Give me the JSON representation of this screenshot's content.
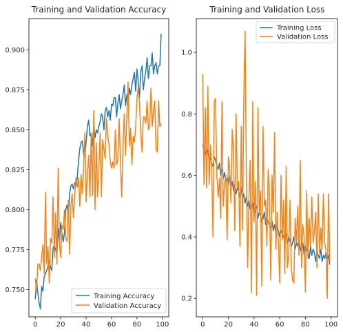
{
  "chart_data": [
    {
      "type": "line",
      "title": "Training and Validation Accuracy",
      "xlabel": "",
      "ylabel": "",
      "xlim": [
        -5,
        105
      ],
      "ylim": [
        0.733,
        0.9195
      ],
      "xticks": [
        0,
        20,
        40,
        60,
        80,
        100
      ],
      "xtick_labels": [
        "0",
        "20",
        "40",
        "60",
        "80",
        "100"
      ],
      "yticks": [
        0.75,
        0.775,
        0.8,
        0.825,
        0.85,
        0.875,
        0.9
      ],
      "ytick_labels": [
        "0.750",
        "0.775",
        "0.800",
        "0.825",
        "0.850",
        "0.875",
        "0.900"
      ],
      "legend_position": "lower-right",
      "grid": false,
      "series": [
        {
          "name": "Training Accuracy",
          "color": "#1f77b4",
          "x": [
            0,
            1,
            2,
            3,
            4,
            5,
            6,
            7,
            8,
            9,
            10,
            11,
            12,
            13,
            14,
            15,
            16,
            17,
            18,
            19,
            20,
            21,
            22,
            23,
            24,
            25,
            26,
            27,
            28,
            29,
            30,
            31,
            32,
            33,
            34,
            35,
            36,
            37,
            38,
            39,
            40,
            41,
            42,
            43,
            44,
            45,
            46,
            47,
            48,
            49,
            50,
            51,
            52,
            53,
            54,
            55,
            56,
            57,
            58,
            59,
            60,
            61,
            62,
            63,
            64,
            65,
            66,
            67,
            68,
            69,
            70,
            71,
            72,
            73,
            74,
            75,
            76,
            77,
            78,
            79,
            80,
            81,
            82,
            83,
            84,
            85,
            86,
            87,
            88,
            89,
            90,
            91,
            92,
            93,
            94,
            95,
            96,
            97,
            98,
            99
          ],
          "values": [
            0.744,
            0.756,
            0.748,
            0.742,
            0.738,
            0.752,
            0.749,
            0.758,
            0.76,
            0.762,
            0.765,
            0.768,
            0.764,
            0.762,
            0.776,
            0.778,
            0.775,
            0.772,
            0.788,
            0.78,
            0.792,
            0.785,
            0.78,
            0.786,
            0.8,
            0.803,
            0.795,
            0.81,
            0.815,
            0.816,
            0.813,
            0.817,
            0.815,
            0.82,
            0.83,
            0.838,
            0.842,
            0.843,
            0.835,
            0.833,
            0.842,
            0.852,
            0.856,
            0.846,
            0.848,
            0.84,
            0.853,
            0.845,
            0.85,
            0.848,
            0.852,
            0.855,
            0.86,
            0.858,
            0.85,
            0.862,
            0.864,
            0.858,
            0.862,
            0.856,
            0.866,
            0.865,
            0.87,
            0.87,
            0.858,
            0.867,
            0.872,
            0.863,
            0.868,
            0.872,
            0.878,
            0.865,
            0.872,
            0.866,
            0.876,
            0.872,
            0.878,
            0.882,
            0.886,
            0.874,
            0.888,
            0.88,
            0.87,
            0.886,
            0.89,
            0.875,
            0.882,
            0.887,
            0.895,
            0.882,
            0.89,
            0.89,
            0.898,
            0.885,
            0.89,
            0.892,
            0.885,
            0.89,
            0.89,
            0.91
          ]
        },
        {
          "name": "Validation Accuracy",
          "color": "#ff7f0e",
          "x": [
            0,
            1,
            2,
            3,
            4,
            5,
            6,
            7,
            8,
            9,
            10,
            11,
            12,
            13,
            14,
            15,
            16,
            17,
            18,
            19,
            20,
            21,
            22,
            23,
            24,
            25,
            26,
            27,
            28,
            29,
            30,
            31,
            32,
            33,
            34,
            35,
            36,
            37,
            38,
            39,
            40,
            41,
            42,
            43,
            44,
            45,
            46,
            47,
            48,
            49,
            50,
            51,
            52,
            53,
            54,
            55,
            56,
            57,
            58,
            59,
            60,
            61,
            62,
            63,
            64,
            65,
            66,
            67,
            68,
            69,
            70,
            71,
            72,
            73,
            74,
            75,
            76,
            77,
            78,
            79,
            80,
            81,
            82,
            83,
            84,
            85,
            86,
            87,
            88,
            89,
            90,
            91,
            92,
            93,
            94,
            95,
            96,
            97,
            98,
            99
          ],
          "values": [
            0.757,
            0.749,
            0.766,
            0.766,
            0.762,
            0.77,
            0.778,
            0.76,
            0.811,
            0.766,
            0.777,
            0.754,
            0.782,
            0.779,
            0.808,
            0.77,
            0.798,
            0.766,
            0.826,
            0.778,
            0.77,
            0.79,
            0.788,
            0.8,
            0.782,
            0.78,
            0.806,
            0.772,
            0.803,
            0.81,
            0.795,
            0.808,
            0.82,
            0.814,
            0.82,
            0.802,
            0.822,
            0.81,
            0.826,
            0.848,
            0.805,
            0.822,
            0.834,
            0.808,
            0.848,
            0.809,
            0.862,
            0.8,
            0.842,
            0.808,
            0.825,
            0.848,
            0.808,
            0.844,
            0.838,
            0.832,
            0.857,
            0.846,
            0.841,
            0.83,
            0.826,
            0.83,
            0.826,
            0.85,
            0.828,
            0.832,
            0.857,
            0.83,
            0.808,
            0.84,
            0.86,
            0.834,
            0.857,
            0.88,
            0.84,
            0.851,
            0.828,
            0.846,
            0.842,
            0.852,
            0.87,
            0.876,
            0.866,
            0.848,
            0.836,
            0.858,
            0.858,
            0.854,
            0.868,
            0.85,
            0.852,
            0.876,
            0.852,
            0.862,
            0.868,
            0.838,
            0.836,
            0.868,
            0.852,
            0.854
          ]
        }
      ]
    },
    {
      "type": "line",
      "title": "Training and Validation Loss",
      "xlabel": "",
      "ylabel": "",
      "xlim": [
        -5,
        105
      ],
      "ylim": [
        0.14,
        1.11
      ],
      "xticks": [
        0,
        20,
        40,
        60,
        80,
        100
      ],
      "xtick_labels": [
        "0",
        "20",
        "40",
        "60",
        "80",
        "100"
      ],
      "yticks": [
        0.2,
        0.4,
        0.6,
        0.8,
        1.0
      ],
      "ytick_labels": [
        "0.2",
        "0.4",
        "0.6",
        "0.8",
        "1.0"
      ],
      "legend_position": "upper-right",
      "grid": false,
      "series": [
        {
          "name": "Training Loss",
          "color": "#1f77b4",
          "x": [
            0,
            1,
            2,
            3,
            4,
            5,
            6,
            7,
            8,
            9,
            10,
            11,
            12,
            13,
            14,
            15,
            16,
            17,
            18,
            19,
            20,
            21,
            22,
            23,
            24,
            25,
            26,
            27,
            28,
            29,
            30,
            31,
            32,
            33,
            34,
            35,
            36,
            37,
            38,
            39,
            40,
            41,
            42,
            43,
            44,
            45,
            46,
            47,
            48,
            49,
            50,
            51,
            52,
            53,
            54,
            55,
            56,
            57,
            58,
            59,
            60,
            61,
            62,
            63,
            64,
            65,
            66,
            67,
            68,
            69,
            70,
            71,
            72,
            73,
            74,
            75,
            76,
            77,
            78,
            79,
            80,
            81,
            82,
            83,
            84,
            85,
            86,
            87,
            88,
            89,
            90,
            91,
            92,
            93,
            94,
            95,
            96,
            97,
            98,
            99
          ],
          "values": [
            0.7,
            0.68,
            0.67,
            0.69,
            0.68,
            0.65,
            0.66,
            0.64,
            0.63,
            0.66,
            0.65,
            0.63,
            0.62,
            0.64,
            0.6,
            0.62,
            0.59,
            0.61,
            0.58,
            0.59,
            0.57,
            0.6,
            0.56,
            0.58,
            0.55,
            0.57,
            0.54,
            0.56,
            0.55,
            0.53,
            0.56,
            0.52,
            0.54,
            0.51,
            0.53,
            0.5,
            0.52,
            0.49,
            0.5,
            0.51,
            0.47,
            0.49,
            0.5,
            0.46,
            0.48,
            0.47,
            0.45,
            0.46,
            0.48,
            0.44,
            0.46,
            0.45,
            0.44,
            0.43,
            0.45,
            0.42,
            0.44,
            0.41,
            0.43,
            0.42,
            0.4,
            0.42,
            0.41,
            0.4,
            0.39,
            0.41,
            0.38,
            0.4,
            0.39,
            0.37,
            0.38,
            0.4,
            0.36,
            0.38,
            0.37,
            0.39,
            0.36,
            0.35,
            0.38,
            0.34,
            0.37,
            0.36,
            0.35,
            0.33,
            0.37,
            0.34,
            0.36,
            0.35,
            0.32,
            0.35,
            0.34,
            0.33,
            0.36,
            0.32,
            0.34,
            0.33,
            0.35,
            0.33,
            0.34,
            0.31
          ]
        },
        {
          "name": "Validation Loss",
          "color": "#ff7f0e",
          "x": [
            0,
            1,
            2,
            3,
            4,
            5,
            6,
            7,
            8,
            9,
            10,
            11,
            12,
            13,
            14,
            15,
            16,
            17,
            18,
            19,
            20,
            21,
            22,
            23,
            24,
            25,
            26,
            27,
            28,
            29,
            30,
            31,
            32,
            33,
            34,
            35,
            36,
            37,
            38,
            39,
            40,
            41,
            42,
            43,
            44,
            45,
            46,
            47,
            48,
            49,
            50,
            51,
            52,
            53,
            54,
            55,
            56,
            57,
            58,
            59,
            60,
            61,
            62,
            63,
            64,
            65,
            66,
            67,
            68,
            69,
            70,
            71,
            72,
            73,
            74,
            75,
            76,
            77,
            78,
            79,
            80,
            81,
            82,
            83,
            84,
            85,
            86,
            87,
            88,
            89,
            90,
            91,
            92,
            93,
            94,
            95,
            96,
            97,
            98,
            99
          ],
          "values": [
            0.93,
            0.57,
            0.82,
            0.56,
            0.89,
            0.57,
            0.7,
            0.63,
            0.4,
            0.84,
            0.85,
            0.6,
            0.53,
            0.59,
            0.46,
            0.84,
            0.5,
            0.57,
            0.6,
            0.39,
            0.66,
            0.62,
            0.51,
            0.75,
            0.68,
            0.42,
            0.8,
            0.56,
            0.58,
            0.37,
            0.76,
            0.42,
            0.85,
            1.07,
            0.6,
            0.3,
            0.52,
            0.65,
            0.22,
            0.84,
            0.45,
            0.58,
            0.21,
            0.82,
            0.48,
            0.55,
            0.24,
            0.76,
            0.5,
            0.52,
            0.37,
            0.62,
            0.54,
            0.26,
            0.6,
            0.48,
            0.74,
            0.36,
            0.48,
            0.38,
            0.25,
            0.6,
            0.39,
            0.52,
            0.28,
            0.63,
            0.3,
            0.34,
            0.52,
            0.3,
            0.26,
            0.25,
            0.46,
            0.38,
            0.5,
            0.34,
            0.65,
            0.3,
            0.44,
            0.4,
            0.22,
            0.55,
            0.33,
            0.46,
            0.37,
            0.53,
            0.38,
            0.42,
            0.48,
            0.3,
            0.54,
            0.35,
            0.43,
            0.36,
            0.54,
            0.38,
            0.36,
            0.2,
            0.54,
            0.32
          ]
        }
      ]
    }
  ]
}
